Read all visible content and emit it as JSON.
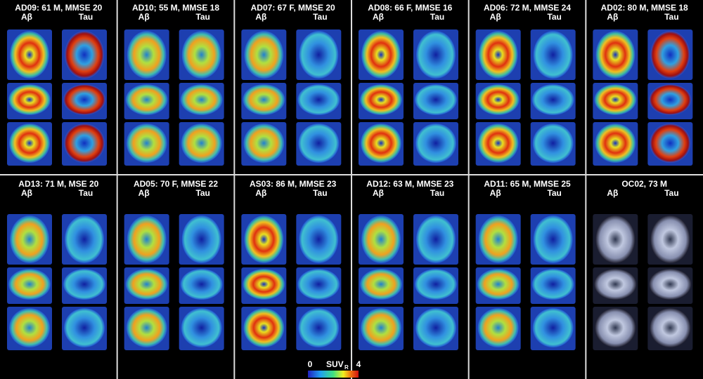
{
  "panels": [
    {
      "title": "AD09: 61 M, MMSE 20",
      "left": "Aβ",
      "right": "Tau"
    },
    {
      "title": "AD10; 55 M, MMSE 18",
      "left": "Aβ",
      "right": "Tau"
    },
    {
      "title": "AD07: 67 F, MMSE 20",
      "left": "Aβ",
      "right": "Tau"
    },
    {
      "title": "AD08: 66 F, MMSE 16",
      "left": "Aβ",
      "right": "Tau"
    },
    {
      "title": "AD06: 72 M, MMSE 24",
      "left": "Aβ",
      "right": "Tau"
    },
    {
      "title": "AD02: 80 M, MMSE 18",
      "left": "Aβ",
      "right": "Tau"
    },
    {
      "title": "AD13: 71 M, MSE 20",
      "left": "Aβ",
      "right": "Tau"
    },
    {
      "title": "AD05: 70 F, MMSE 22",
      "left": "Aβ",
      "right": "Tau"
    },
    {
      "title": "AS03: 86 M, MMSE 23",
      "left": "Aβ",
      "right": "Tau"
    },
    {
      "title": "AD12:  63 M, MMSE 23",
      "left": "Aβ",
      "right": "Tau"
    },
    {
      "title": "AD11: 65 M,  MMSE 25",
      "left": "Aβ",
      "right": "Tau"
    },
    {
      "title": "OC02, 73 M",
      "left": "Aβ",
      "right": "Tau"
    }
  ],
  "colorbar": {
    "min": "0",
    "label": "SUV",
    "label_sub": "R",
    "max": "4"
  }
}
